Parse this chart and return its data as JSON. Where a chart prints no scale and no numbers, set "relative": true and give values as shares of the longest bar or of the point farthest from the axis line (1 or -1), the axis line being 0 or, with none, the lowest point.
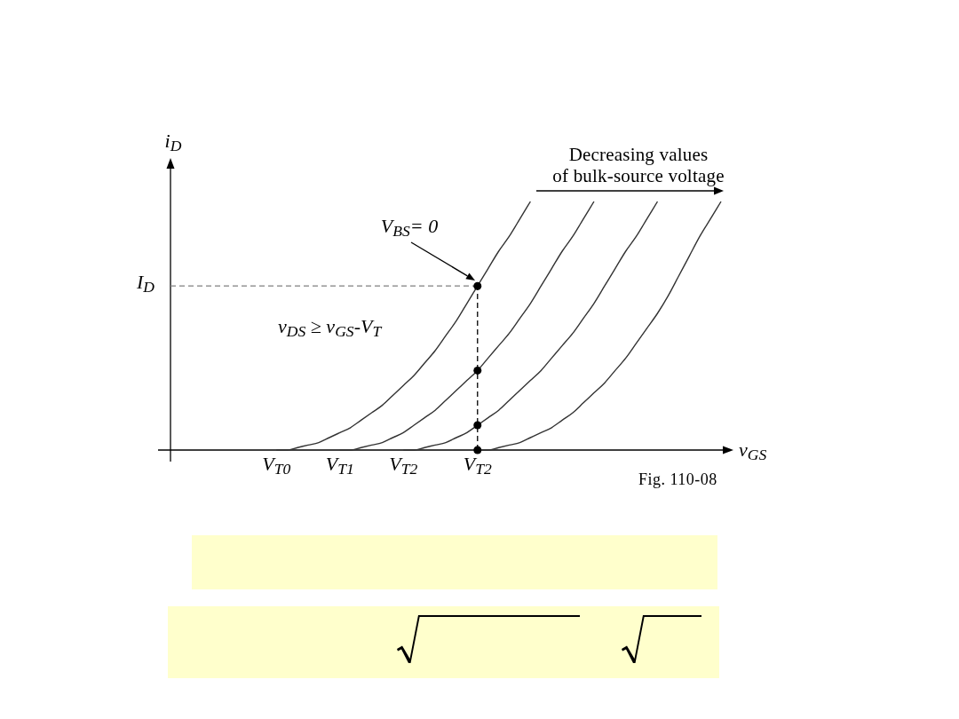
{
  "chart_data": {
    "type": "line",
    "xlabel": "v$_{GS}$",
    "ylabel": "i$_{D}$",
    "relative": true,
    "categories": [
      null,
      null,
      null,
      null,
      null,
      null,
      null,
      null,
      null,
      null,
      "V$_{T0}$",
      null,
      null,
      null,
      null,
      null,
      "V$_{T1}$",
      null,
      null,
      null,
      null,
      null,
      "V$_{T2}$",
      null,
      null,
      null,
      null,
      null,
      null,
      "V$_{T2}$",
      null,
      null,
      null,
      null,
      null,
      null,
      null,
      null,
      null,
      null,
      null,
      null,
      null,
      null,
      null,
      null,
      null,
      null,
      null,
      null,
      null,
      null,
      null
    ],
    "series": [
      {
        "color": "#333333",
        "values": [
          null,
          null,
          null,
          null,
          null,
          null,
          null,
          null,
          null,
          null,
          0,
          0,
          0.01,
          0.02,
          0.03,
          0.05,
          0.07,
          0.09,
          0.12,
          0.15,
          0.18,
          0.22,
          0.26,
          0.3,
          0.35,
          0.4,
          0.46,
          0.52,
          0.59,
          0.66,
          0.73,
          0.8,
          0.86,
          0.93,
          1,
          null,
          null,
          null,
          null,
          null,
          null,
          null,
          null,
          null,
          null,
          null,
          null,
          null,
          null,
          null,
          null,
          null,
          null
        ]
      },
      {
        "color": "#333333",
        "values": [
          null,
          null,
          null,
          null,
          null,
          null,
          null,
          null,
          null,
          null,
          null,
          null,
          null,
          null,
          null,
          null,
          0,
          0,
          0.01,
          0.02,
          0.03,
          0.05,
          0.07,
          0.1,
          0.13,
          0.16,
          0.2,
          0.24,
          0.28,
          0.32,
          0.37,
          0.42,
          0.47,
          0.53,
          0.59,
          0.66,
          0.73,
          0.8,
          0.86,
          0.93,
          1,
          null,
          null,
          null,
          null,
          null,
          null,
          null,
          null,
          null,
          null,
          null,
          null
        ]
      },
      {
        "color": "#333333",
        "values": [
          null,
          null,
          null,
          null,
          null,
          null,
          null,
          null,
          null,
          null,
          null,
          null,
          null,
          null,
          null,
          null,
          null,
          null,
          null,
          null,
          null,
          null,
          0,
          0,
          0.01,
          0.02,
          0.03,
          0.05,
          0.07,
          0.1,
          0.13,
          0.16,
          0.2,
          0.24,
          0.28,
          0.32,
          0.37,
          0.42,
          0.47,
          0.53,
          0.59,
          0.66,
          0.73,
          0.8,
          0.86,
          0.93,
          1,
          null,
          null,
          null,
          null,
          null,
          null
        ]
      },
      {
        "color": "#333333",
        "values": [
          null,
          null,
          null,
          null,
          null,
          null,
          null,
          null,
          null,
          null,
          null,
          null,
          null,
          null,
          null,
          null,
          null,
          null,
          null,
          null,
          null,
          null,
          null,
          null,
          null,
          null,
          null,
          null,
          null,
          0,
          0,
          0.01,
          0.02,
          0.03,
          0.05,
          0.07,
          0.09,
          0.12,
          0.15,
          0.19,
          0.23,
          0.27,
          0.32,
          0.37,
          0.43,
          0.49,
          0.55,
          0.62,
          0.7,
          0.78,
          0.86,
          0.93,
          1
        ]
      },
      {
        "type": "lollipop",
        "color": "#000000",
        "line_style": "dashed",
        "marker": "circle",
        "values": [
          null,
          null,
          null,
          null,
          null,
          null,
          null,
          null,
          null,
          null,
          null,
          null,
          null,
          null,
          null,
          null,
          null,
          null,
          null,
          null,
          null,
          null,
          null,
          null,
          null,
          null,
          null,
          null,
          null,
          0.66,
          null,
          null,
          null,
          null,
          null,
          null,
          null,
          null,
          null,
          null,
          null,
          null,
          null,
          null,
          null,
          null,
          null,
          null,
          null,
          null,
          null,
          null,
          null
        ]
      },
      {
        "type": "scatter",
        "color": "#000000",
        "marker": "circle",
        "values": [
          null,
          null,
          null,
          null,
          null,
          null,
          null,
          null,
          null,
          null,
          null,
          null,
          null,
          null,
          null,
          null,
          null,
          null,
          null,
          null,
          null,
          null,
          null,
          null,
          null,
          null,
          null,
          null,
          null,
          0.32,
          null,
          null,
          null,
          null,
          null,
          null,
          null,
          null,
          null,
          null,
          null,
          null,
          null,
          null,
          null,
          null,
          null,
          null,
          null,
          null,
          null,
          null,
          null
        ]
      },
      {
        "type": "scatter",
        "color": "#000000",
        "marker": "circle",
        "values": [
          null,
          null,
          null,
          null,
          null,
          null,
          null,
          null,
          null,
          null,
          null,
          null,
          null,
          null,
          null,
          null,
          null,
          null,
          null,
          null,
          null,
          null,
          null,
          null,
          null,
          null,
          null,
          null,
          null,
          0.1,
          null,
          null,
          null,
          null,
          null,
          null,
          null,
          null,
          null,
          null,
          null,
          null,
          null,
          null,
          null,
          null,
          null,
          null,
          null,
          null,
          null,
          null,
          null
        ]
      },
      {
        "type": "scatter",
        "color": "#000000",
        "marker": "circle",
        "values": [
          null,
          null,
          null,
          null,
          null,
          null,
          null,
          null,
          null,
          null,
          null,
          null,
          null,
          null,
          null,
          null,
          null,
          null,
          null,
          null,
          null,
          null,
          null,
          null,
          null,
          null,
          null,
          null,
          null,
          0,
          null,
          null,
          null,
          null,
          null,
          null,
          null,
          null,
          null,
          null,
          null,
          null,
          null,
          null,
          null,
          null,
          null,
          null,
          null,
          null,
          null,
          null,
          null
        ]
      }
    ],
    "ref_lines": [
      {
        "axis": "y",
        "value": 0.66,
        "label": "I$_{D}$",
        "color": "#808080",
        "line_style": "dashed"
      }
    ],
    "annotations": [
      "Decreasing values\nof bulk-source voltage",
      "V$_{BS}$= 0",
      "v$_{DS}$ ≥ v$_{GS}$-V$_{T}$",
      "Fig. 110-08"
    ]
  }
}
